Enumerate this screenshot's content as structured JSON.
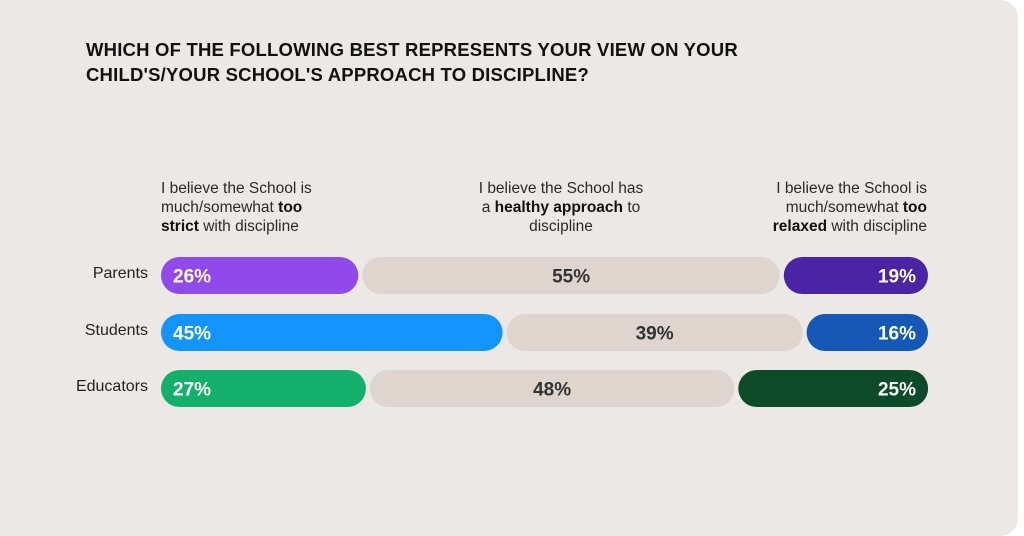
{
  "title_lines": [
    "WHICH OF THE FOLLOWING BEST REPRESENTS YOUR VIEW ON YOUR",
    "CHILD'S/YOUR SCHOOL'S APPROACH TO DISCIPLINE?"
  ],
  "headers": {
    "left": {
      "line1": "I believe the School is",
      "line2": "much/somewhat",
      "line2_bold": "too",
      "line3_bold": "strict",
      "line3": "with discipline"
    },
    "middle": {
      "line1": "I believe the School has",
      "line2_pre": "a",
      "line2_bold": "healthy approach",
      "line2_post": "to",
      "line3": "discipline"
    },
    "right": {
      "line1": "I believe the School is",
      "line2": "much/somewhat",
      "line2_bold": "too",
      "line3_bold": "relaxed",
      "line3": "with discipline"
    }
  },
  "chart_data": {
    "type": "bar",
    "orientation": "horizontal",
    "stacked": true,
    "normalized": true,
    "categories": [
      "Parents",
      "Students",
      "Educators"
    ],
    "series": [
      {
        "name": "I believe the School is much/somewhat too strict with discipline",
        "values": [
          26,
          45,
          27
        ],
        "labels": [
          "26%",
          "45%",
          "27%"
        ]
      },
      {
        "name": "I believe the School has a healthy approach to discipline",
        "values": [
          55,
          39,
          48
        ],
        "labels": [
          "55%",
          "39%",
          "48%"
        ]
      },
      {
        "name": "I believe the School is much/somewhat too relaxed with discipline",
        "values": [
          19,
          16,
          25
        ],
        "labels": [
          "19%",
          "16%",
          "25%"
        ]
      }
    ],
    "colors": {
      "too_strict": [
        "#9049ea",
        "#1394ff",
        "#12b06a"
      ],
      "healthy": "#ddd5ce",
      "too_relaxed": [
        "#4a24a4",
        "#1558b8",
        "#0c4a2a"
      ]
    },
    "label_colors": {
      "on_dark": "#ffffff",
      "on_healthy": "#333333"
    },
    "legend": "column headers above bars",
    "grid": false
  }
}
